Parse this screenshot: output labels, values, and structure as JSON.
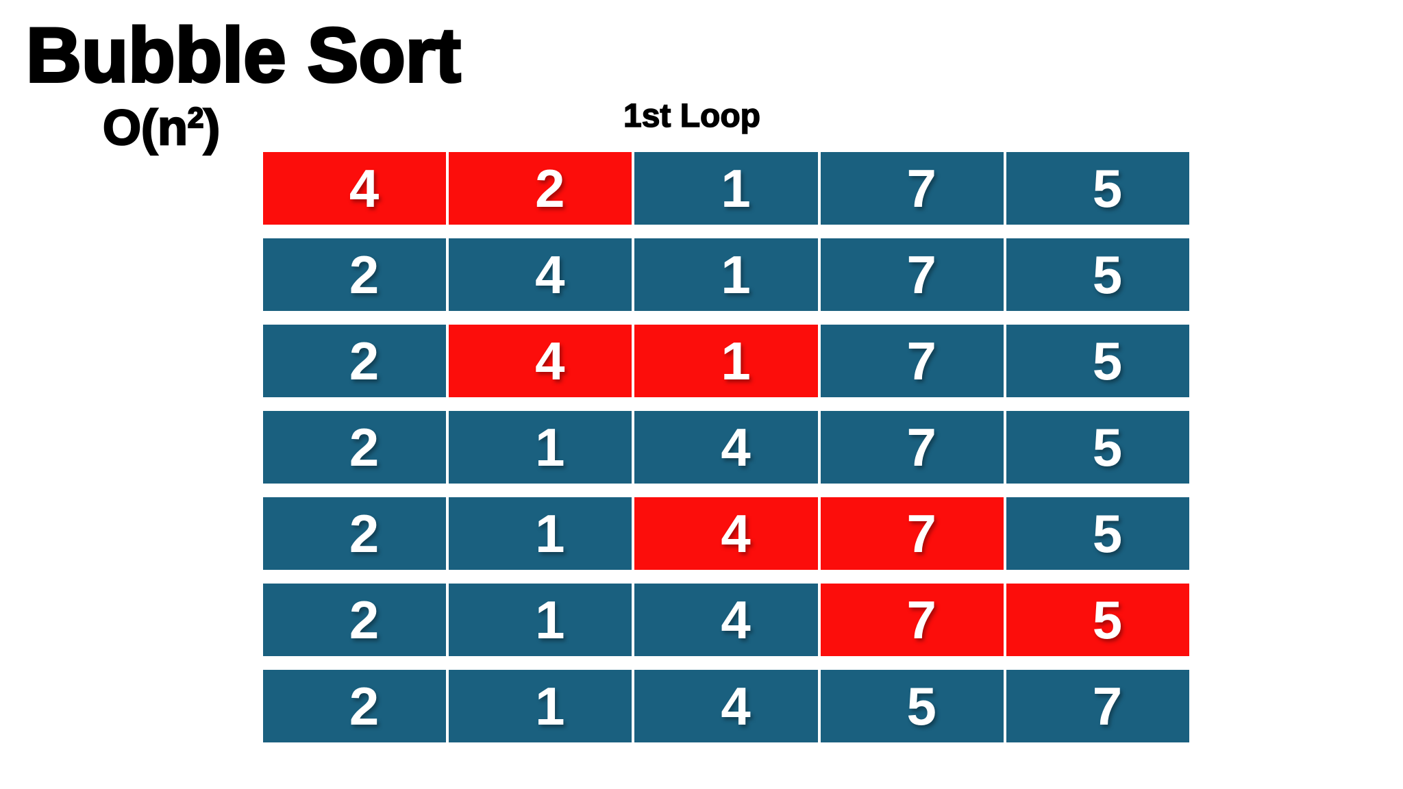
{
  "title": "Bubble Sort",
  "complexity": {
    "prefix": "O(n",
    "superscript": "2",
    "suffix": ")"
  },
  "loop_label": "1st Loop",
  "colors": {
    "background": "#FFFFFF",
    "title_text": "#000000",
    "cell_default": "#1A607F",
    "cell_highlight": "#FC0D0B",
    "cell_text": "#FFFFFF"
  },
  "grid": {
    "columns": 5,
    "rows": [
      {
        "values": [
          4,
          2,
          1,
          7,
          5
        ],
        "highlighted": [
          0,
          1
        ]
      },
      {
        "values": [
          2,
          4,
          1,
          7,
          5
        ],
        "highlighted": []
      },
      {
        "values": [
          2,
          4,
          1,
          7,
          5
        ],
        "highlighted": [
          1,
          2
        ]
      },
      {
        "values": [
          2,
          1,
          4,
          7,
          5
        ],
        "highlighted": []
      },
      {
        "values": [
          2,
          1,
          4,
          7,
          5
        ],
        "highlighted": [
          2,
          3
        ]
      },
      {
        "values": [
          2,
          1,
          4,
          7,
          5
        ],
        "highlighted": [
          3,
          4
        ]
      },
      {
        "values": [
          2,
          1,
          4,
          5,
          7
        ],
        "highlighted": []
      }
    ]
  }
}
